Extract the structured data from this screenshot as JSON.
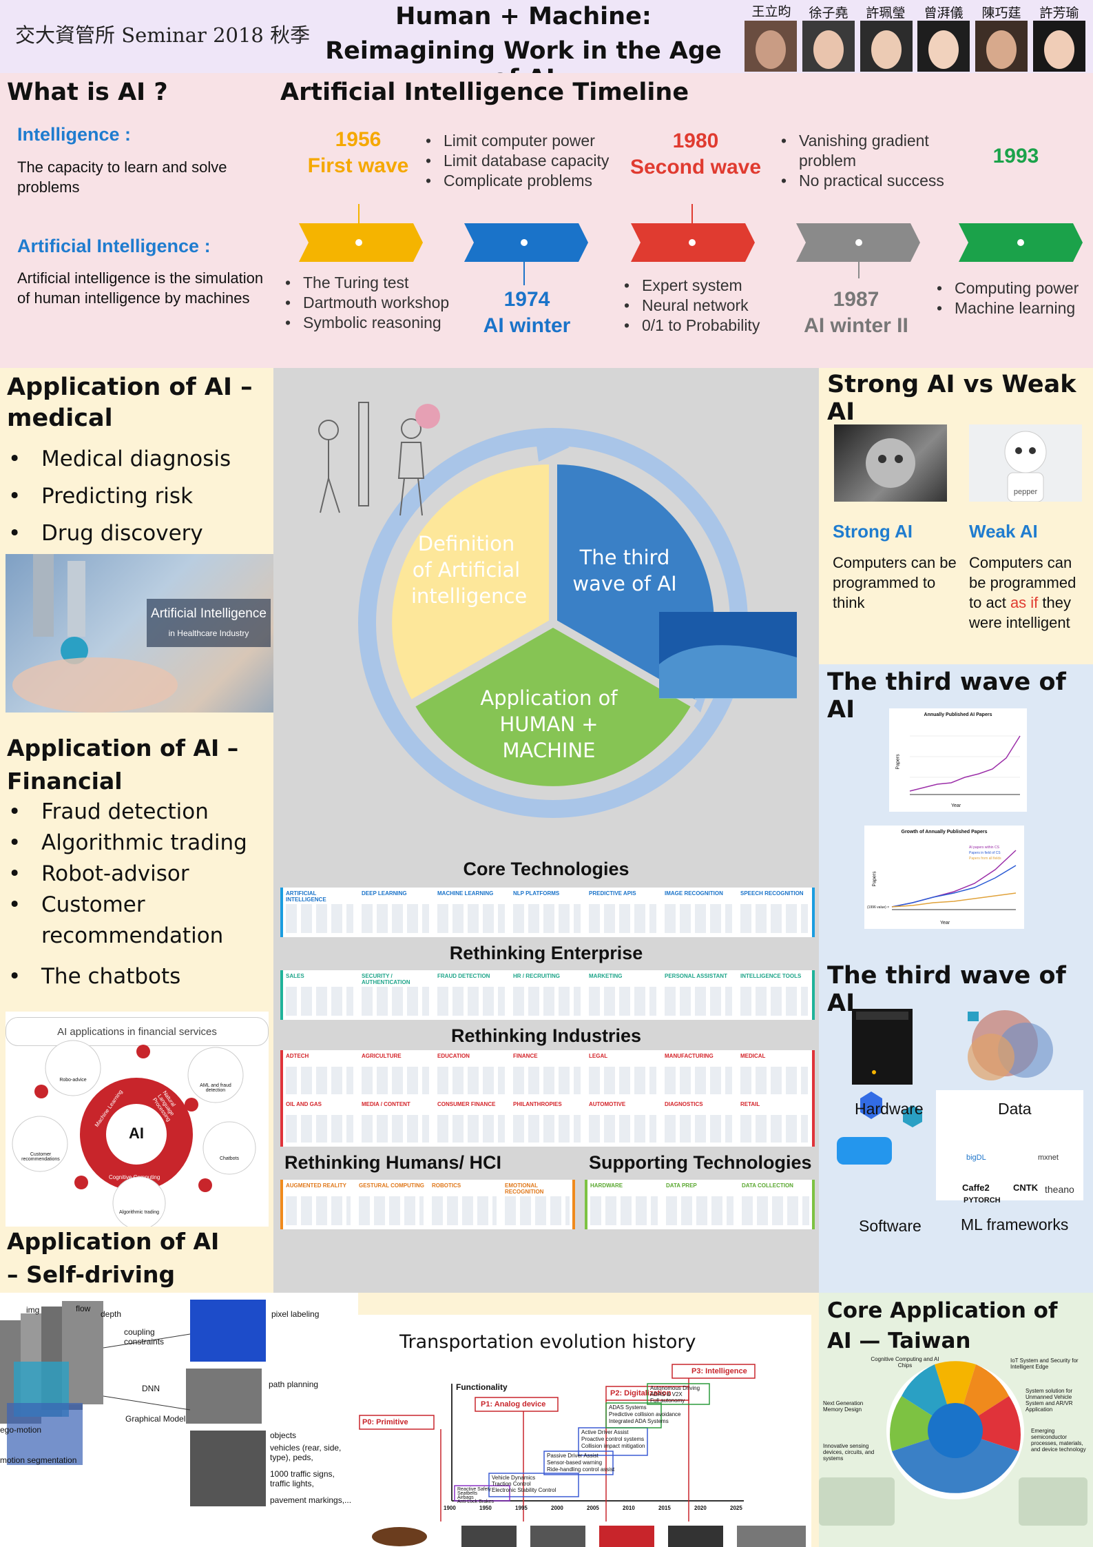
{
  "header": {
    "left_title": "交大資管所 Seminar 2018 秋季",
    "main_title_1": "Human + Machine:",
    "main_title_2": "Reimagining Work in the Age of AI",
    "authors": [
      "王立昀",
      "徐子堯",
      "許珮瑩",
      "曾湃儀",
      "陳巧莛",
      "許芳瑜"
    ]
  },
  "what_is_ai": {
    "title": "What is AI ?",
    "intel_label": "Intelligence :",
    "intel_text": "The capacity to learn and solve problems",
    "ai_label": "Artificial Intelligence :",
    "ai_text": "Artificial intelligence is the simulation of human intelligence by machines"
  },
  "timeline": {
    "title": "Artificial Intelligence Timeline",
    "w1956_year": "1956",
    "w1956_name": "First wave",
    "w1956_top": [
      "Limit computer power",
      "Limit database capacity",
      "Complicate problems"
    ],
    "w1956_bottom": [
      "The Turing test",
      "Dartmouth workshop",
      "Symbolic reasoning"
    ],
    "w1974_year": "1974",
    "w1974_name": "AI winter",
    "w1980_year": "1980",
    "w1980_name": "Second wave",
    "w1980_top": [
      "Vanishing gradient problem",
      "No practical success"
    ],
    "w1980_bottom": [
      "Expert system",
      "Neural network",
      "0/1 to Probability"
    ],
    "w1987_year": "1987",
    "w1987_name": "AI winter II",
    "w1993_year": "1993",
    "w1993_bottom": [
      "Computing power",
      "Machine learning"
    ],
    "colors": [
      "#f5b400",
      "#1a73c9",
      "#e03b30",
      "#8a8a8a",
      "#1ba24a"
    ]
  },
  "medical": {
    "title": "Application of AI – medical",
    "items": [
      "Medical diagnosis",
      "Predicting risk",
      "Drug discovery"
    ],
    "image_title": "Artificial Intelligence",
    "image_sub": "in Healthcare Industry"
  },
  "financial": {
    "title": "Application of AI – Financial",
    "items": [
      "Fraud detection",
      "Algorithmic trading",
      "Robot-advisor",
      "Customer recommendation",
      "The chatbots"
    ],
    "diagram_title": "AI applications in financial services",
    "center": "AI",
    "ring": [
      "Machine Learning",
      "Natural Language Processing",
      "Cognitive Computing"
    ],
    "nodes": [
      "Robo-advice",
      "AML and fraud detection",
      "Customer recommendations",
      "Algorithmic trading",
      "Chatbots"
    ]
  },
  "self_driving": {
    "title": "Application of AI – Self-driving",
    "labels": [
      "img",
      "flow",
      "depth",
      "coupling constraints",
      "DNN",
      "Graphical Model",
      "ego-motion",
      "motion segmentation",
      "pixel labeling",
      "path planning",
      "objects",
      "vehicles (rear, side, type), peds,",
      "1000 traffic signs, traffic lights,",
      "pavement markings,..."
    ]
  },
  "center": {
    "cycle": [
      "Definition of Artificial intelligence",
      "The third wave of AI",
      "Application of HUMAN + MACHINE"
    ],
    "core_tech": "Core Technologies",
    "core_cats": [
      "ARTIFICIAL INTELLIGENCE",
      "DEEP LEARNING",
      "MACHINE LEARNING",
      "NLP PLATFORMS",
      "PREDICTIVE APIS",
      "IMAGE RECOGNITION",
      "SPEECH RECOGNITION"
    ],
    "enterprise": "Rethinking Enterprise",
    "enterprise_cats": [
      "SALES",
      "SECURITY / AUTHENTICATION",
      "FRAUD DETECTION",
      "HR / RECRUITING",
      "MARKETING",
      "PERSONAL ASSISTANT",
      "INTELLIGENCE TOOLS"
    ],
    "industries": "Rethinking Industries",
    "industry_cats": [
      "ADTECH",
      "AGRICULTURE",
      "EDUCATION",
      "FINANCE",
      "LEGAL",
      "MANUFACTURING",
      "MEDICAL",
      "OIL AND GAS",
      "MEDIA / CONTENT",
      "CONSUMER FINANCE",
      "PHILANTHROPIES",
      "AUTOMOTIVE",
      "DIAGNOSTICS",
      "RETAIL"
    ],
    "humans": "Rethinking Humans/ HCI",
    "humans_cats": [
      "AUGMENTED REALITY",
      "GESTURAL COMPUTING",
      "ROBOTICS",
      "EMOTIONAL RECOGNITION"
    ],
    "supporting": "Supporting Technologies",
    "supporting_cats": [
      "HARDWARE",
      "DATA PREP",
      "DATA COLLECTION"
    ]
  },
  "transport": {
    "title": "Transportation evolution history",
    "y_label": "Functionality",
    "phases": [
      "P0: Primitive",
      "P1: Analog device",
      "P2: Digitalization",
      "P3: Intelligence"
    ],
    "years": [
      "1900",
      "1950",
      "1995",
      "2000",
      "2005",
      "2010",
      "2015",
      "2020",
      "2025"
    ],
    "boxes": [
      "Vehicle Dynamics",
      "Traction Control",
      "Electronic Stability Control",
      "Reactive Safety",
      "Seatbelts",
      "Airbags",
      "Anti-Lock Brakes",
      "Passive Driver Assist",
      "Sensor-based warning",
      "Ride-handling control assist",
      "Active Driver Assist",
      "Proactive control systems",
      "Collision impact mitigation",
      "ADAS Systems",
      "Predictive collision avoidance",
      "Integrated ADA Systems",
      "Autonomous Driving",
      "ADAS & V2X",
      "Full autonomy"
    ]
  },
  "strong_weak": {
    "title": "Strong AI vs Weak AI",
    "strong_label": "Strong AI",
    "strong_text": "Computers can be programmed to think",
    "weak_label": "Weak AI",
    "weak_text_1": "Computers can be programmed to act",
    "weak_asif": "as if",
    "weak_text_2": "they were intelligent",
    "robot_text": "pepper"
  },
  "third_wave_1": {
    "title": "The third wave of AI",
    "chart1_title": "Annually Published AI Papers",
    "chart1_y": "Papers",
    "chart1_x": "Year",
    "chart2_title": "Growth of Annually Published Papers",
    "chart2_y": "Papers",
    "chart2_x": "Year",
    "chart2_legend": [
      "AI papers within CS",
      "Papers in field of CS",
      "Papers from all fields"
    ],
    "chart2_ylabel_note": "(1996 value) ×"
  },
  "third_wave_2": {
    "title": "The third wave of AI",
    "captions": [
      "Hardware",
      "Data",
      "Software",
      "ML frameworks"
    ],
    "framework_logos": [
      "Caffe2",
      "CNTK",
      "theano",
      "PYTORCH",
      "bigDL",
      "mxnet"
    ]
  },
  "taiwan": {
    "title": "Core Application of AI — Taiwan",
    "items": [
      "Cognitive Computing and AI Chips",
      "IoT System and Security for Intelligent Edge",
      "System solution for Unmanned Vehicle System and AR/VR Application",
      "Next Generation Memory Design",
      "Emerging semiconductor processes, materials, and device technology",
      "Innovative sensing devices, circuits, and systems"
    ]
  }
}
